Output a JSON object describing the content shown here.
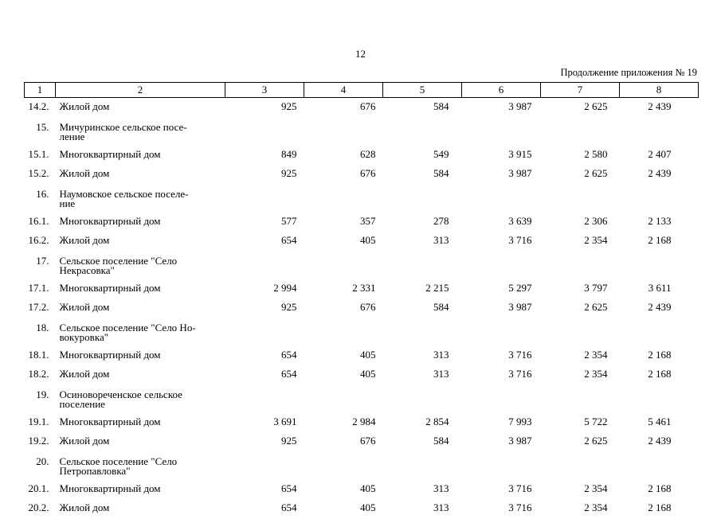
{
  "page_number": "12",
  "continuation": "Продолжение приложения № 19",
  "headers": [
    "1",
    "2",
    "3",
    "4",
    "5",
    "6",
    "7",
    "8"
  ],
  "rows": [
    {
      "num": "14.2.",
      "name": "Жилой дом",
      "v": [
        "925",
        "676",
        "584",
        "3 987",
        "2 625",
        "2 439"
      ]
    },
    {
      "num": "15.",
      "name": "Мичуринское сельское посе-\nление",
      "v": []
    },
    {
      "num": "15.1.",
      "name": "Многоквартирный дом",
      "v": [
        "849",
        "628",
        "549",
        "3 915",
        "2 580",
        "2 407"
      ]
    },
    {
      "num": "15.2.",
      "name": "Жилой дом",
      "v": [
        "925",
        "676",
        "584",
        "3 987",
        "2 625",
        "2 439"
      ]
    },
    {
      "num": "16.",
      "name": "Наумовское сельское поселе-\nние",
      "v": []
    },
    {
      "num": "16.1.",
      "name": "Многоквартирный дом",
      "v": [
        "577",
        "357",
        "278",
        "3 639",
        "2 306",
        "2 133"
      ]
    },
    {
      "num": "16.2.",
      "name": "Жилой дом",
      "v": [
        "654",
        "405",
        "313",
        "3 716",
        "2 354",
        "2 168"
      ]
    },
    {
      "num": "17.",
      "name": "Сельское поселение \"Село\nНекрасовка\"",
      "v": []
    },
    {
      "num": "17.1.",
      "name": "Многоквартирный дом",
      "v": [
        "2 994",
        "2 331",
        "2 215",
        "5 297",
        "3 797",
        "3 611"
      ]
    },
    {
      "num": "17.2.",
      "name": "Жилой дом",
      "v": [
        "925",
        "676",
        "584",
        "3 987",
        "2 625",
        "2 439"
      ]
    },
    {
      "num": "18.",
      "name": "Сельское поселение \"Село Но-\nвокуровка\"",
      "v": []
    },
    {
      "num": "18.1.",
      "name": "Многоквартирный дом",
      "v": [
        "654",
        "405",
        "313",
        "3 716",
        "2 354",
        "2 168"
      ]
    },
    {
      "num": "18.2.",
      "name": "Жилой дом",
      "v": [
        "654",
        "405",
        "313",
        "3 716",
        "2 354",
        "2 168"
      ]
    },
    {
      "num": "19.",
      "name": "Осиновореченское сельское\nпоселение",
      "v": []
    },
    {
      "num": "19.1.",
      "name": "Многоквартирный дом",
      "v": [
        "3 691",
        "2 984",
        "2 854",
        "7 993",
        "5 722",
        "5 461"
      ]
    },
    {
      "num": "19.2.",
      "name": "Жилой дом",
      "v": [
        "925",
        "676",
        "584",
        "3 987",
        "2 625",
        "2 439"
      ]
    },
    {
      "num": "20.",
      "name": "Сельское поселение \"Село\nПетропавловка\"",
      "v": []
    },
    {
      "num": "20.1.",
      "name": "Многоквартирный дом",
      "v": [
        "654",
        "405",
        "313",
        "3 716",
        "2 354",
        "2 168"
      ]
    },
    {
      "num": "20.2.",
      "name": "Жилой дом",
      "v": [
        "654",
        "405",
        "313",
        "3 716",
        "2 354",
        "2 168"
      ]
    }
  ]
}
